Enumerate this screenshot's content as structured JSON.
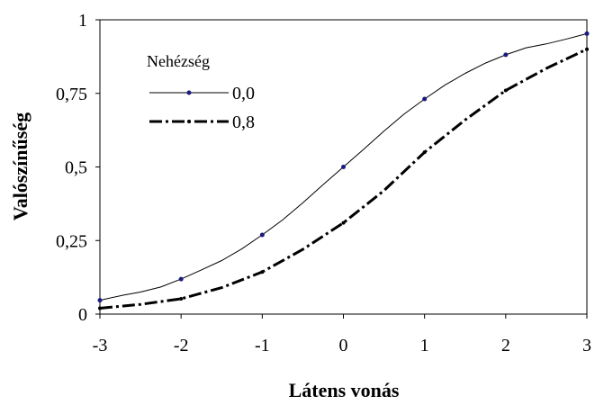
{
  "chart_data": {
    "type": "line",
    "xlabel": "Látens vonás",
    "ylabel": "Valószínűség",
    "xlim": [
      -3,
      3
    ],
    "ylim": [
      0,
      1
    ],
    "x_ticks": [
      "-3",
      "-2",
      "-1",
      "0",
      "1",
      "2",
      "3"
    ],
    "y_ticks": [
      "0",
      "0,25",
      "0,5",
      "0,75",
      "1"
    ],
    "legend": {
      "title": "Nehézség",
      "position": "top-left"
    },
    "grid": false,
    "series": [
      {
        "name": "0,0",
        "color": "#000000",
        "marker_color": "#1a1a80",
        "style": "solid",
        "marker_x": [
          -3,
          -2,
          -1,
          0,
          1,
          2,
          3
        ],
        "x": [
          -3,
          -2.7,
          -2.5,
          -2.25,
          -2,
          -1.75,
          -1.5,
          -1.25,
          -1,
          -0.75,
          -0.5,
          -0.25,
          0,
          0.25,
          0.5,
          0.75,
          1,
          1.25,
          1.5,
          1.75,
          2,
          2.25,
          2.5,
          2.75,
          3
        ],
        "y": [
          0.047,
          0.065,
          0.075,
          0.092,
          0.119,
          0.15,
          0.182,
          0.222,
          0.269,
          0.32,
          0.378,
          0.44,
          0.5,
          0.56,
          0.622,
          0.68,
          0.731,
          0.778,
          0.818,
          0.853,
          0.881,
          0.905,
          0.918,
          0.935,
          0.953
        ]
      },
      {
        "name": "0,8",
        "color": "#000000",
        "marker_color": "#000000",
        "style": "dash-dot",
        "marker_x": [
          -3,
          -2,
          -1,
          0,
          1,
          2,
          3
        ],
        "x": [
          -3,
          -2.5,
          -2,
          -1.5,
          -1,
          -0.5,
          0,
          0.5,
          1,
          1.5,
          2,
          2.5,
          3
        ],
        "y": [
          0.02,
          0.033,
          0.052,
          0.09,
          0.143,
          0.22,
          0.31,
          0.42,
          0.55,
          0.66,
          0.76,
          0.835,
          0.9
        ]
      }
    ]
  }
}
